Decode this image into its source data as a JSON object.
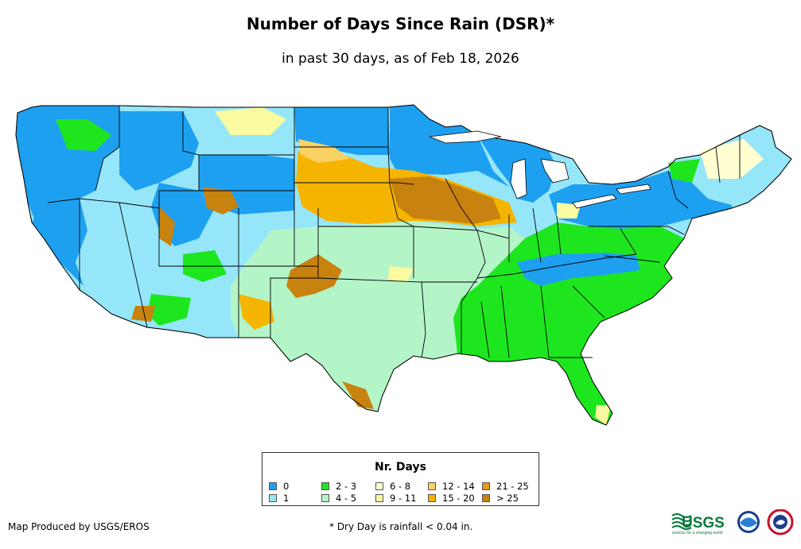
{
  "title": "Number of Days Since Rain (DSR)*",
  "subtitle": "in past 30 days, as of Feb 18, 2026",
  "legend": {
    "title": "Nr. Days",
    "items": [
      {
        "label": "0",
        "color": "#1ea0f0"
      },
      {
        "label": "1",
        "color": "#96e6fa"
      },
      {
        "label": "2 - 3",
        "color": "#1ee61e"
      },
      {
        "label": "4 - 5",
        "color": "#b4f5c8"
      },
      {
        "label": "6 - 8",
        "color": "#ffffd2"
      },
      {
        "label": "9 - 11",
        "color": "#fafaa0"
      },
      {
        "label": "12 - 14",
        "color": "#fad264"
      },
      {
        "label": "15 - 20",
        "color": "#f5b400"
      },
      {
        "label": "21 - 25",
        "color": "#e69b14"
      },
      {
        "label": "> 25",
        "color": "#c8820f"
      }
    ]
  },
  "credit": "Map Produced by USGS/EROS",
  "footnote": "* Dry Day is rainfall < 0.04 in.",
  "logos": {
    "usgs_text": "USGS",
    "usgs_tagline": "science for a changing world"
  }
}
